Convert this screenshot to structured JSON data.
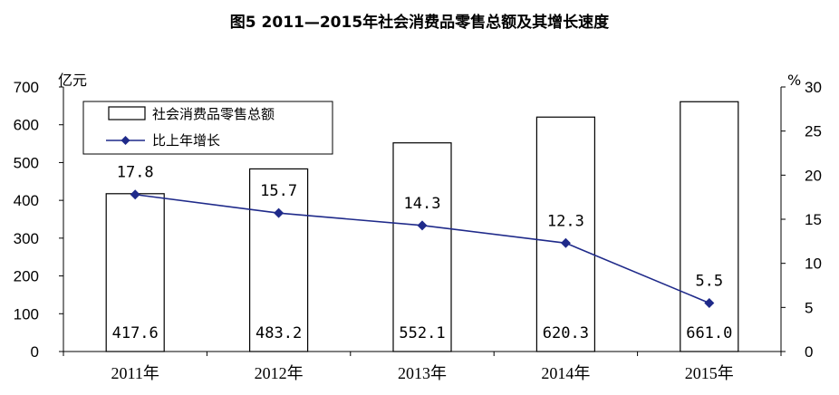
{
  "chart_data": {
    "type": "bar",
    "title": "图5 2011—2015年社会消费品零售总额及其增长速度",
    "categories": [
      "2011年",
      "2012年",
      "2013年",
      "2014年",
      "2015年"
    ],
    "series": [
      {
        "name": "社会消费品零售总额",
        "type": "bar",
        "axis": "left",
        "values": [
          417.6,
          483.2,
          552.1,
          620.3,
          661.0
        ],
        "labels": [
          "417.6",
          "483.2",
          "552.1",
          "620.3",
          "661.0"
        ],
        "color": "#ffffff",
        "stroke": "#000000"
      },
      {
        "name": "比上年增长",
        "type": "line",
        "axis": "right",
        "values": [
          17.8,
          15.7,
          14.3,
          12.3,
          5.5
        ],
        "labels": [
          "17.8",
          "15.7",
          "14.3",
          "12.3",
          "5.5"
        ],
        "color": "#1f2a8a",
        "marker": "diamond"
      }
    ],
    "y_left": {
      "unit": "亿元",
      "range": [
        0,
        700
      ],
      "ticks": [
        "0",
        "100",
        "200",
        "300",
        "400",
        "500",
        "600",
        "700"
      ]
    },
    "y_right": {
      "unit": "%",
      "range": [
        0,
        30
      ],
      "ticks": [
        "0",
        "5",
        "10",
        "15",
        "20",
        "25",
        "30"
      ]
    },
    "grid": false,
    "legend": {
      "position": "top-left",
      "entries": [
        "社会消费品零售总额",
        "比上年增长"
      ]
    }
  }
}
